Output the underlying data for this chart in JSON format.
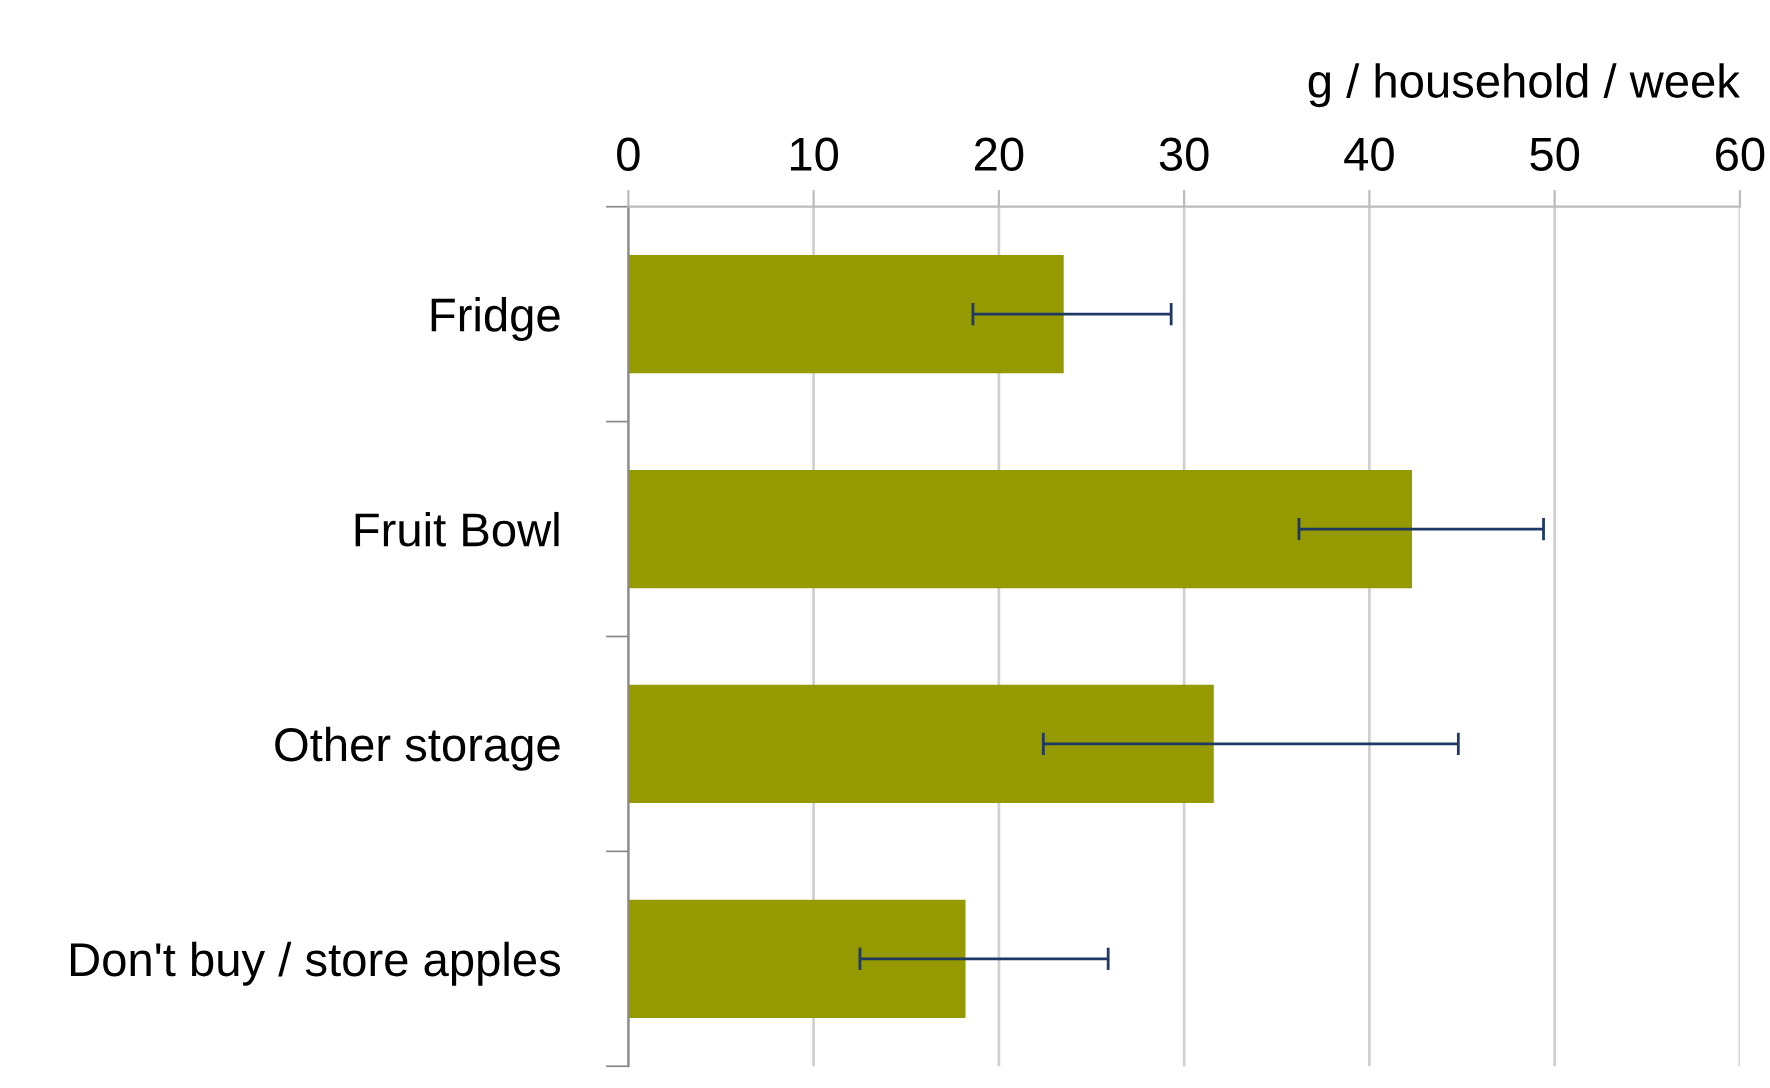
{
  "chart_data": {
    "type": "bar",
    "orientation": "horizontal",
    "xlabel": "g / household / week",
    "categories": [
      "Fridge",
      "Fruit Bowl",
      "Other storage",
      "Don't buy / store apples"
    ],
    "values": [
      23.5,
      42.3,
      31.6,
      18.2
    ],
    "errors": [
      [
        18.6,
        29.3
      ],
      [
        36.2,
        49.4
      ],
      [
        22.4,
        44.8
      ],
      [
        12.5,
        25.9
      ]
    ],
    "color": "#949a00",
    "xlim": [
      0,
      60
    ],
    "xticks": [
      0,
      10,
      20,
      30,
      40,
      50,
      60
    ],
    "grid": "x",
    "legend": false
  }
}
